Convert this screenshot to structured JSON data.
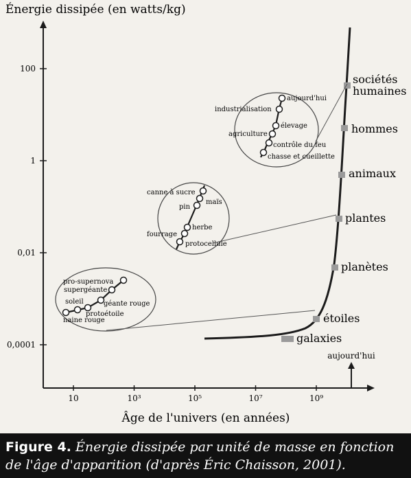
{
  "chart_data": {
    "type": "line",
    "ylabel": "Énergie dissipée (en watts/kg)",
    "xlabel": "Âge de l'univers (en années)",
    "x_scale": "log",
    "y_scale": "log",
    "x_ticks": [
      {
        "value": 10,
        "label": "10"
      },
      {
        "value": 1000,
        "label": "10³"
      },
      {
        "value": 100000,
        "label": "10⁵"
      },
      {
        "value": 10000000,
        "label": "10⁷"
      },
      {
        "value": 1000000000,
        "label": "10⁹"
      }
    ],
    "y_ticks": [
      {
        "value": 100,
        "label": "100"
      },
      {
        "value": 1,
        "label": "1"
      },
      {
        "value": 0.01,
        "label": "0,01"
      },
      {
        "value": 0.0001,
        "label": "0,0001"
      }
    ],
    "today_label": "aujourd'hui",
    "main_curve_labels": [
      "sociétés humaines",
      "hommes",
      "animaux",
      "plantes",
      "planètes",
      "étoiles",
      "galaxies"
    ],
    "insets": [
      {
        "name": "sociétés",
        "points": [
          "aujourd'hui",
          "industrialisation",
          "élevage",
          "agriculture",
          "contrôle du feu",
          "chasse et cueillette"
        ]
      },
      {
        "name": "plantes",
        "points": [
          "canne à sucre",
          "maïs",
          "pin",
          "herbe",
          "fourrage",
          "protocellule"
        ]
      },
      {
        "name": "étoiles",
        "points": [
          "pro-supernova",
          "supergéante",
          "soleil",
          "géante rouge",
          "protoétoile",
          "naine rouge"
        ]
      }
    ]
  },
  "caption": {
    "label": "Figure 4.",
    "text": "Énergie dissipée par unité de masse en fonction de l'âge d'apparition (d'après Éric Chaisson, 2001)."
  }
}
